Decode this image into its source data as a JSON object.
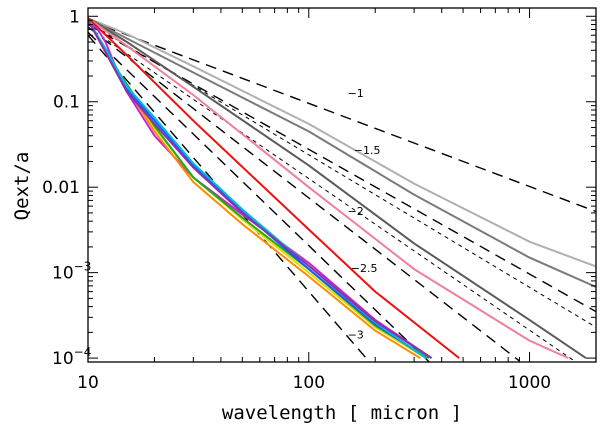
{
  "chart_data": {
    "type": "line",
    "title": "",
    "xlabel": "wavelength [ micron ]",
    "ylabel": "Qext/a",
    "xscale": "log",
    "yscale": "log",
    "xlim": [
      10,
      2000
    ],
    "ylim": [
      9e-05,
      1.25
    ],
    "x_ticks": [
      {
        "value": 10,
        "label": "10"
      },
      {
        "value": 100,
        "label": "100"
      },
      {
        "value": 1000,
        "label": "1000"
      }
    ],
    "y_ticks": [
      {
        "value": 1,
        "label": "1",
        "base": "",
        "exp": ""
      },
      {
        "value": 0.1,
        "label": "0.1",
        "base": "",
        "exp": ""
      },
      {
        "value": 0.01,
        "label": "0.01",
        "base": "",
        "exp": ""
      },
      {
        "value": 0.001,
        "label": "",
        "base": "10",
        "exp": "−3"
      },
      {
        "value": 0.0001,
        "label": "",
        "base": "10",
        "exp": "−4"
      }
    ],
    "reference_slopes": [
      {
        "slope": -1,
        "label": "−1",
        "x": [
          10,
          2000
        ],
        "y": [
          0.9,
          0.0052
        ],
        "label_at": [
          150,
          0.113
        ]
      },
      {
        "slope": -1.5,
        "label": "−1.5",
        "x": [
          10,
          2000
        ],
        "y": [
          0.8,
          0.00035
        ],
        "label_at": [
          160,
          0.0245
        ]
      },
      {
        "slope": -2,
        "label": "−2",
        "x": [
          10,
          900
        ],
        "y": [
          0.75,
          9.26e-05
        ],
        "label_at": [
          150,
          0.0047
        ]
      },
      {
        "slope": -2.5,
        "label": "−2.5",
        "x": [
          10,
          380
        ],
        "y": [
          0.65,
          7.4e-05
        ],
        "label_at": [
          155,
          0.00102
        ]
      },
      {
        "slope": -3,
        "label": "−3",
        "x": [
          10,
          210
        ],
        "y": [
          0.6,
          6.5e-05
        ],
        "label_at": [
          150,
          0.00017
        ]
      }
    ],
    "fine_dashed": [
      {
        "name": "fine-dashed-1",
        "x": [
          10,
          2000
        ],
        "y": [
          0.85,
          0.00023
        ]
      },
      {
        "name": "fine-dashed-2",
        "x": [
          10,
          2000
        ],
        "y": [
          0.75,
          6.2e-05
        ]
      }
    ],
    "series": [
      {
        "name": "light-gray",
        "color": "#b0b0b0",
        "x": [
          10,
          15,
          30,
          100,
          300,
          1000,
          2000
        ],
        "y": [
          0.95,
          0.62,
          0.26,
          0.055,
          0.011,
          0.0023,
          0.00118
        ]
      },
      {
        "name": "gray",
        "color": "#7a7a7a",
        "x": [
          10,
          15,
          30,
          100,
          300,
          1000,
          2000
        ],
        "y": [
          0.95,
          0.55,
          0.22,
          0.045,
          0.0082,
          0.0015,
          0.00068
        ]
      },
      {
        "name": "dark-gray",
        "color": "#5a5a5a",
        "x": [
          10,
          15,
          30,
          100,
          300,
          1000,
          1800
        ],
        "y": [
          0.95,
          0.5,
          0.15,
          0.018,
          0.0022,
          0.00028,
          0.0001
        ]
      },
      {
        "name": "pink",
        "color": "#f08098",
        "x": [
          10,
          15,
          30,
          100,
          300,
          1000,
          1500
        ],
        "y": [
          0.95,
          0.45,
          0.12,
          0.01,
          0.0011,
          0.00016,
          0.0001
        ]
      },
      {
        "name": "red",
        "color": "#ee1111",
        "x": [
          10,
          15,
          30,
          100,
          200,
          480
        ],
        "y": [
          0.95,
          0.35,
          0.06,
          0.0032,
          0.0006,
          0.0001
        ]
      },
      {
        "name": "magenta",
        "color": "#cc22cc",
        "x": [
          10,
          11,
          12,
          13,
          15,
          20,
          30,
          50,
          100,
          200,
          360
        ],
        "y": [
          0.85,
          0.72,
          0.5,
          0.3,
          0.13,
          0.04,
          0.013,
          0.0048,
          0.0013,
          0.00028,
          0.0001
        ]
      },
      {
        "name": "yellow",
        "color": "#dddd00",
        "x": [
          10,
          13,
          20,
          30,
          50,
          100,
          200,
          340
        ],
        "y": [
          0.9,
          0.27,
          0.05,
          0.013,
          0.0042,
          0.001,
          0.00023,
          0.0001
        ]
      },
      {
        "name": "green",
        "color": "#22aa22",
        "x": [
          10,
          13,
          20,
          30,
          50,
          100,
          200,
          350
        ],
        "y": [
          0.9,
          0.28,
          0.052,
          0.013,
          0.0044,
          0.0011,
          0.00024,
          0.0001
        ]
      },
      {
        "name": "orange",
        "color": "#ff8c00",
        "x": [
          10,
          13,
          20,
          30,
          50,
          100,
          200,
          320
        ],
        "y": [
          0.9,
          0.26,
          0.045,
          0.0115,
          0.0037,
          0.0009,
          0.00021,
          0.0001
        ]
      },
      {
        "name": "blue",
        "color": "#2255ff",
        "x": [
          10,
          12,
          15,
          20,
          30,
          50,
          100,
          200,
          340
        ],
        "y": [
          0.9,
          0.4,
          0.14,
          0.06,
          0.018,
          0.0052,
          0.0011,
          0.00025,
          0.0001
        ]
      },
      {
        "name": "cyan",
        "color": "#00bbdd",
        "x": [
          10,
          12,
          15,
          20,
          30,
          50,
          100,
          200,
          340
        ],
        "y": [
          0.9,
          0.42,
          0.15,
          0.065,
          0.019,
          0.0055,
          0.0012,
          0.00026,
          0.0001
        ]
      },
      {
        "name": "violet",
        "color": "#8833aa",
        "x": [
          10,
          12,
          15,
          20,
          30,
          50,
          100,
          200,
          360
        ],
        "y": [
          0.9,
          0.38,
          0.13,
          0.055,
          0.017,
          0.005,
          0.0012,
          0.00027,
          0.0001
        ]
      }
    ]
  }
}
